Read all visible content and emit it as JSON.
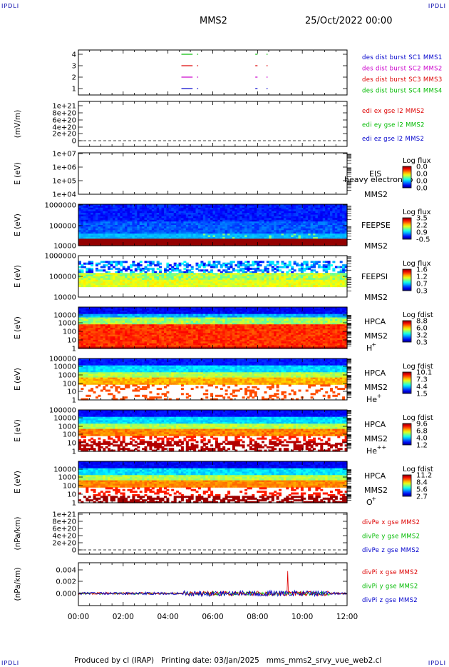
{
  "corner_label": "IPDLI",
  "header": {
    "spacecraft": "MMS2",
    "datetime": "25/Oct/2022 00:00"
  },
  "footer": "Produced by cl (IRAP)   Printing date: 03/Jan/2025   mms_mms2_srvy_vue_web2.cl",
  "colors": {
    "blue": "#0000cc",
    "magenta": "#cc00cc",
    "red": "#dd0000",
    "green": "#00bb00"
  },
  "chart_data": {
    "type": "heatmap",
    "x_ticks": [
      "00:00",
      "02:00",
      "04:00",
      "06:00",
      "08:00",
      "10:00",
      "12:00"
    ],
    "xlim_hours": [
      0,
      12
    ],
    "panels": [
      {
        "id": "burst",
        "type": "line",
        "yticks": [
          "4",
          "3",
          "2",
          "1"
        ],
        "ylim": [
          0.5,
          4.5
        ],
        "legend": [
          {
            "text": "des dist burst SC1 MMS1",
            "color": "#0000cc"
          },
          {
            "text": "des dist burst SC2 MMS2",
            "color": "#cc00cc"
          },
          {
            "text": "des dist burst SC3 MMS3",
            "color": "#dd0000"
          },
          {
            "text": "des dist burst SC4 MMS4",
            "color": "#00bb00"
          }
        ],
        "segments": [
          {
            "level": 4,
            "x": [
              [
                4.6,
                5.1
              ],
              [
                5.3,
                5.35
              ],
              [
                7.9,
                8.0
              ],
              [
                8.4,
                8.45
              ]
            ],
            "color": "#00bb00"
          },
          {
            "level": 3,
            "x": [
              [
                4.6,
                5.1
              ],
              [
                5.3,
                5.35
              ],
              [
                7.9,
                8.0
              ],
              [
                8.4,
                8.45
              ]
            ],
            "color": "#dd0000"
          },
          {
            "level": 2,
            "x": [
              [
                4.6,
                5.1
              ],
              [
                5.3,
                5.35
              ],
              [
                7.9,
                8.0
              ],
              [
                8.4,
                8.45
              ]
            ],
            "color": "#cc00cc"
          },
          {
            "level": 1,
            "x": [
              [
                4.6,
                5.1
              ],
              [
                5.3,
                5.35
              ],
              [
                7.9,
                8.0
              ],
              [
                8.4,
                8.45
              ]
            ],
            "color": "#0000cc"
          }
        ]
      },
      {
        "id": "edi",
        "type": "line",
        "ylabel": "(mV/m)",
        "yticks": [
          "1e+21",
          "8e+20",
          "6e+20",
          "4e+20",
          "2e+20",
          "0"
        ],
        "ylim": [
          0,
          1e+21
        ],
        "legend": [
          {
            "text": "edi ex gse l2 MMS2",
            "color": "#dd0000"
          },
          {
            "text": "edi ey gse l2 MMS2",
            "color": "#00bb00"
          },
          {
            "text": "edi ez gse l2 MMS2",
            "color": "#0000cc"
          }
        ]
      },
      {
        "id": "eis",
        "type": "heatmap",
        "ylabel": "E (eV)",
        "yticks": [
          "1e+07",
          "1e+06",
          "1e+05",
          "1e+04"
        ],
        "labels": [
          "EIS",
          "MMS2"
        ],
        "overlay_text": "heavy electron to",
        "cbar_title": "Log flux",
        "cbar_ticks": [
          "0.0",
          "0.0",
          "0.0",
          "0.0"
        ]
      },
      {
        "id": "feepse",
        "type": "heatmap",
        "ylabel": "E (eV)",
        "yticks": [
          "1000000",
          "100000",
          "10000"
        ],
        "labels": [
          "FEEPSE",
          "MMS2"
        ],
        "cbar_title": "Log flux",
        "cbar_ticks": [
          "3.5",
          "2.2",
          "0.9",
          "-0.5"
        ]
      },
      {
        "id": "feepsi",
        "type": "heatmap",
        "ylabel": "E (eV)",
        "yticks": [
          "1000000",
          "100000",
          "10000"
        ],
        "labels": [
          "FEEPSI",
          "MMS2"
        ],
        "cbar_title": "Log flux",
        "cbar_ticks": [
          "1.6",
          "1.2",
          "0.7",
          "0.3"
        ]
      },
      {
        "id": "hpca_h",
        "type": "heatmap",
        "ylabel": "E (eV)",
        "yticks": [
          "10000",
          "1000",
          "100",
          "10",
          "1"
        ],
        "labels": [
          "HPCA",
          "MMS2"
        ],
        "species": "H",
        "species_sup": "+",
        "cbar_title": "Log fdist",
        "cbar_ticks": [
          "8.8",
          "6.0",
          "3.2",
          "0.3"
        ]
      },
      {
        "id": "hpca_he1",
        "type": "heatmap",
        "ylabel": "E (eV)",
        "yticks": [
          "100000",
          "10000",
          "1000",
          "100",
          "10",
          "1"
        ],
        "labels": [
          "HPCA",
          "MMS2"
        ],
        "species": "He",
        "species_sup": "+",
        "cbar_title": "Log fdist",
        "cbar_ticks": [
          "10.1",
          "7.3",
          "4.4",
          "1.5"
        ]
      },
      {
        "id": "hpca_he2",
        "type": "heatmap",
        "ylabel": "E (eV)",
        "yticks": [
          "100000",
          "10000",
          "1000",
          "100",
          "10",
          "1"
        ],
        "labels": [
          "HPCA",
          "MMS2"
        ],
        "species": "He",
        "species_sup": "++",
        "cbar_title": "Log fdist",
        "cbar_ticks": [
          "9.6",
          "6.8",
          "4.0",
          "1.2"
        ]
      },
      {
        "id": "hpca_o",
        "type": "heatmap",
        "ylabel": "E (eV)",
        "yticks": [
          "10000",
          "1000",
          "100",
          "10",
          "1"
        ],
        "labels": [
          "HPCA",
          "MMS2"
        ],
        "species": "O",
        "species_sup": "+",
        "cbar_title": "Log fdist",
        "cbar_ticks": [
          "11.2",
          "8.4",
          "5.6",
          "2.7"
        ]
      },
      {
        "id": "divpe",
        "type": "line",
        "ylabel": "(nPa/km)",
        "yticks": [
          "1e+21",
          "8e+20",
          "6e+20",
          "4e+20",
          "2e+20",
          "0"
        ],
        "ylim": [
          0,
          1e+21
        ],
        "legend": [
          {
            "text": "divPe x gse MMS2",
            "color": "#dd0000"
          },
          {
            "text": "divPe y gse MMS2",
            "color": "#00bb00"
          },
          {
            "text": "divPe z gse MMS2",
            "color": "#0000cc"
          }
        ]
      },
      {
        "id": "divpi",
        "type": "line",
        "ylabel": "(nPa/km)",
        "yticks": [
          "0.004",
          "0.002",
          "0.000"
        ],
        "ylim": [
          -0.0013,
          0.0052
        ],
        "legend": [
          {
            "text": "divPi x gse MMS2",
            "color": "#dd0000"
          },
          {
            "text": "divPi y gse MMS2",
            "color": "#00bb00"
          },
          {
            "text": "divPi z gse MMS2",
            "color": "#0000cc"
          }
        ]
      }
    ]
  }
}
